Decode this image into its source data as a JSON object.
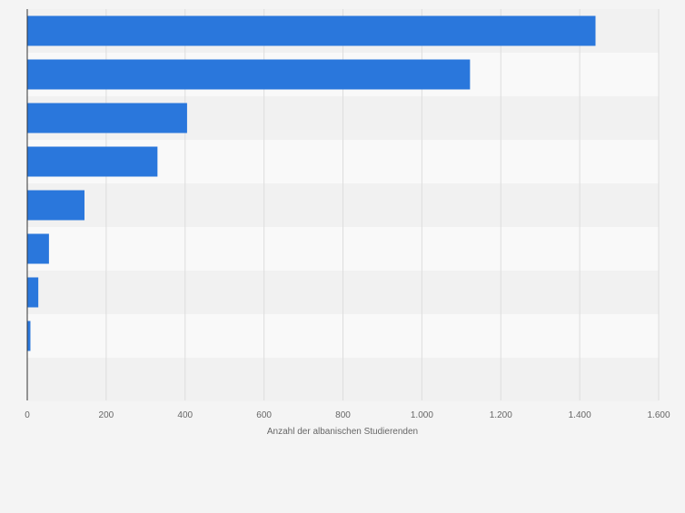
{
  "chart_data": {
    "type": "bar",
    "orientation": "horizontal",
    "title": "",
    "xlabel": "Anzahl der albanischen Studierenden",
    "ylabel": "",
    "categories": [
      "",
      "",
      "",
      "",
      "",
      "",
      "",
      "",
      ""
    ],
    "values": [
      1440,
      1122,
      405,
      330,
      145,
      55,
      28,
      8,
      0
    ],
    "xlim": [
      0,
      1600
    ],
    "ticks": [
      0,
      200,
      400,
      600,
      800,
      1000,
      1200,
      1400,
      1600
    ],
    "tick_labels": [
      "0",
      "200",
      "400",
      "600",
      "800",
      "1.000",
      "1.200",
      "1.400",
      "1.600"
    ],
    "grid": true,
    "bar_color": "#2a77dc"
  }
}
